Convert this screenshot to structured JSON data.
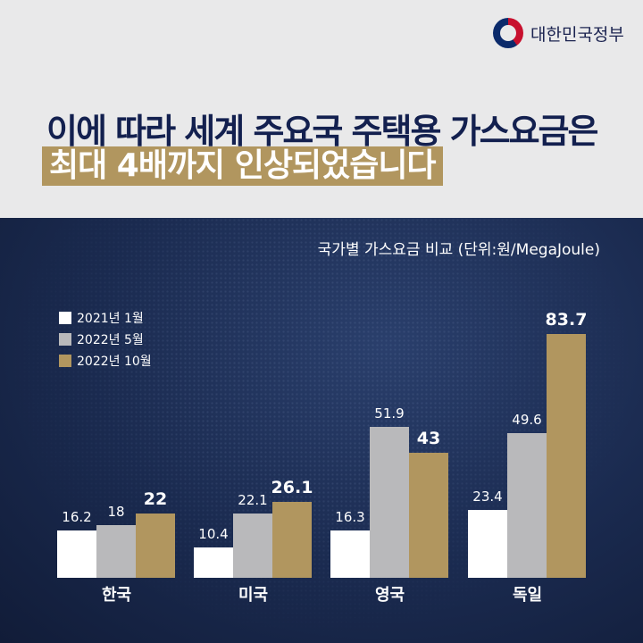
{
  "header": {
    "logo_text": "대한민국정부",
    "title_line1": "이에 따라 세계 주요국 주택용 가스요금은",
    "title_line2": "최대 4배까지 인상되었습니다"
  },
  "colors": {
    "navy": "#13204f",
    "gold": "#b1965f",
    "white": "#ffffff",
    "gray": "#b9b9bb"
  },
  "chart_data": {
    "type": "bar",
    "title": "국가별 가스요금 비교 (단위:원/MegaJoule)",
    "categories": [
      "한국",
      "미국",
      "영국",
      "독일"
    ],
    "series": [
      {
        "name": "2021년 1월",
        "color": "#ffffff",
        "values": [
          16.2,
          10.4,
          16.3,
          23.4
        ]
      },
      {
        "name": "2022년 5월",
        "color": "#b9b9bb",
        "values": [
          18,
          22.1,
          51.9,
          49.6
        ]
      },
      {
        "name": "2022년 10월",
        "color": "#b1965f",
        "values": [
          22,
          26.1,
          43,
          83.7
        ]
      }
    ],
    "ylim": [
      0,
      90
    ],
    "legend": "top-left",
    "grid": false
  }
}
